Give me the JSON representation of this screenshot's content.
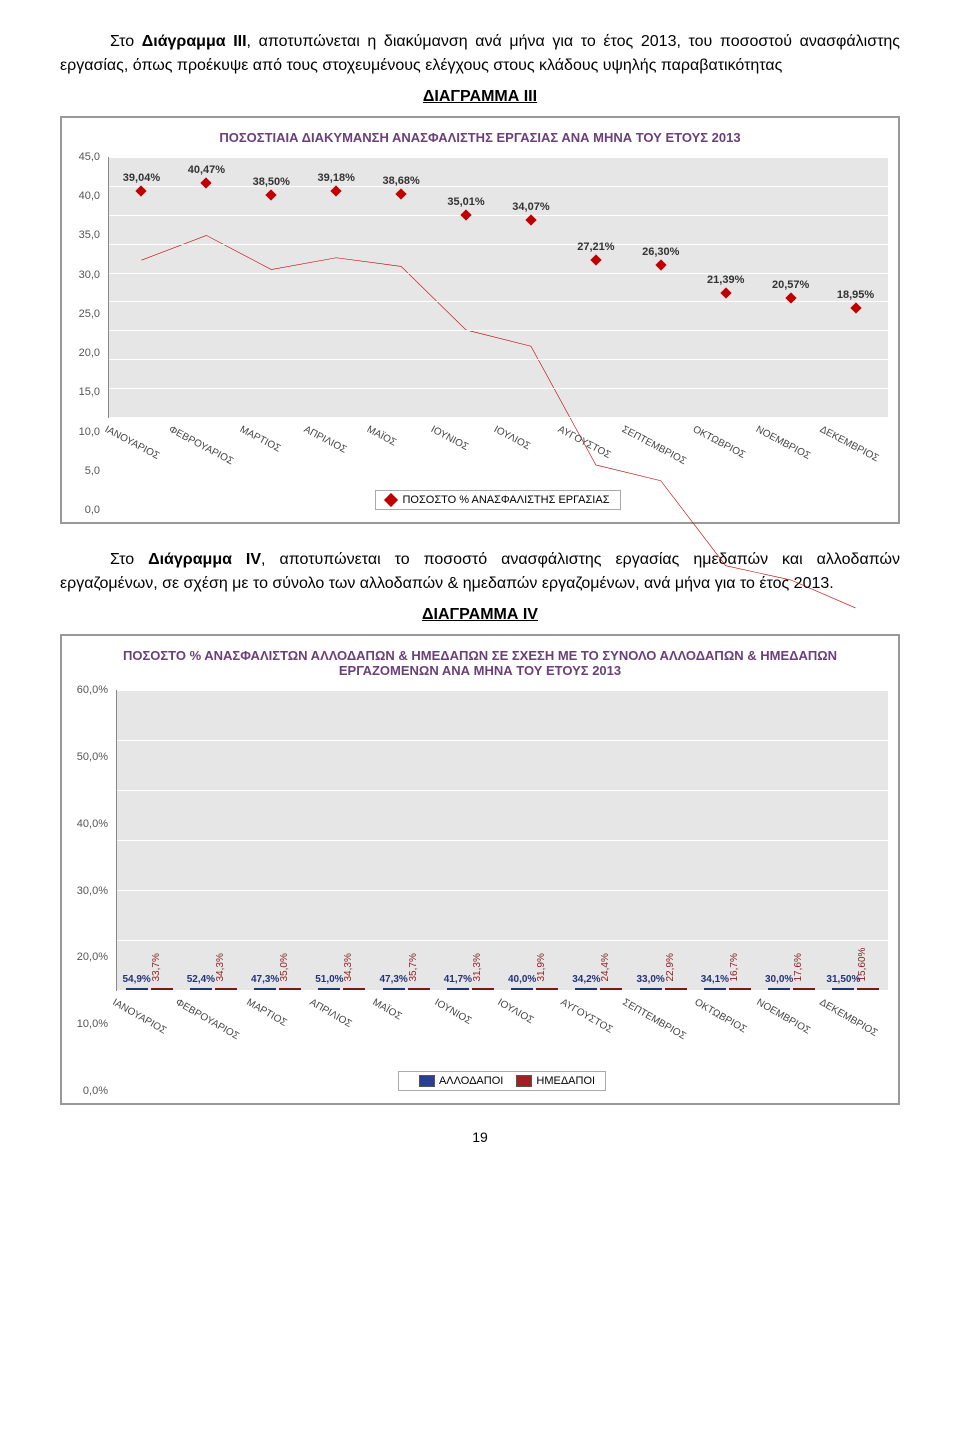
{
  "para1_prefix": "Στο ",
  "para1_bold": "Διάγραμμα ΙII",
  "para1_rest": ", αποτυπώνεται η διακύμανση ανά μήνα για το έτος 2013, του ποσοστού ανασφάλιστης εργασίας, όπως προέκυψε από τους στοχευμένους ελέγχους στους κλάδους υψηλής παραβατικότητας",
  "heading3": "ΔΙΑΓΡΑΜΜΑ III",
  "chart3": {
    "title": "ΠΟΣΟΣΤΙΑΙΑ ΔΙΑΚΥΜΑΝΣΗ ΑΝΑΣΦΑΛΙΣΤΗΣ ΕΡΓΑΣΙΑΣ ΑΝΑ ΜΗΝΑ ΤΟΥ ΕΤΟΥΣ 2013",
    "ymin": 0,
    "ymax": 45,
    "ystep": 5,
    "line_color": "#c00000",
    "bg": "#e6e6e6",
    "grid_color": "#ffffff",
    "months": [
      "ΙΑΝΟΥΑΡΙΟΣ",
      "ΦΕΒΡΟΥΑΡΙΟΣ",
      "ΜΑΡΤΙΟΣ",
      "ΑΠΡΙΛΙΟΣ",
      "ΜΑΪΟΣ",
      "ΙΟΥΝΙΟΣ",
      "ΙΟΥΛΙΟΣ",
      "ΑΥΓΟΥΣΤΟΣ",
      "ΣΕΠΤΕΜΒΡΙΟΣ",
      "ΟΚΤΩΒΡΙΟΣ",
      "ΝΟΕΜΒΡΙΟΣ",
      "ΔΕΚΕΜΒΡΙΟΣ"
    ],
    "values": [
      39.04,
      40.47,
      38.5,
      39.18,
      38.68,
      35.01,
      34.07,
      27.21,
      26.3,
      21.39,
      20.57,
      18.95
    ],
    "value_labels": [
      "39,04%",
      "40,47%",
      "38,50%",
      "39,18%",
      "38,68%",
      "35,01%",
      "34,07%",
      "27,21%",
      "26,30%",
      "21,39%",
      "20,57%",
      "18,95%"
    ],
    "legend": "ΠΟΣΟΣΤΟ % ΑΝΑΣΦΑΛΙΣΤΗΣ ΕΡΓΑΣΙΑΣ"
  },
  "para2_prefix": "Στο ",
  "para2_bold": "Διάγραμμα ΙV",
  "para2_rest": ", αποτυπώνεται το ποσοστό ανασφάλιστης εργασίας ημεδαπών και αλλοδαπών εργαζομένων, σε σχέση με το σύνολο των αλλοδαπών & ημεδαπών εργαζομένων, ανά μήνα για το έτος 2013.",
  "heading4": "ΔΙΑΓΡΑΜΜΑ IV",
  "chart4": {
    "title": "ΠΟΣΟΣΤΟ % ΑΝΑΣΦΑΛΙΣΤΩΝ ΑΛΛΟΔΑΠΩΝ & ΗΜΕΔΑΠΩΝ ΣΕ ΣΧΕΣΗ ΜΕ ΤΟ ΣΥΝΟΛΟ ΑΛΛΟΔΑΠΩΝ & ΗΜΕΔΑΠΩΝ ΕΡΓΑΖΟΜΕΝΩΝ ΑΝΑ ΜΗΝΑ ΤΟΥ ΕΤΟΥΣ 2013",
    "ymin": 0,
    "ymax": 60,
    "ystep": 10,
    "bar1_color": "#2a3f8f",
    "bar2_color": "#a22020",
    "bg": "#e6e6e6",
    "grid_color": "#ffffff",
    "months": [
      "ΙΑΝΟΥΑΡΙΟΣ",
      "ΦΕΒΡΟΥΑΡΙΟΣ",
      "ΜΑΡΤΙΟΣ",
      "ΑΠΡΙΛΙΟΣ",
      "ΜΑΪΟΣ",
      "ΙΟΥΝΙΟΣ",
      "ΙΟΥΛΙΟΣ",
      "ΑΥΓΟΥΣΤΟΣ",
      "ΣΕΠΤΕΜΒΡΙΟΣ",
      "ΟΚΤΩΒΡΙΟΣ",
      "ΝΟΕΜΒΡΙΟΣ",
      "ΔΕΚΕΜΒΡΙΟΣ"
    ],
    "series1": [
      54.9,
      52.4,
      47.3,
      51.0,
      47.3,
      41.7,
      40.0,
      34.2,
      33.0,
      34.1,
      30.0,
      31.5
    ],
    "series1_labels": [
      "54,9%",
      "52,4%",
      "47,3%",
      "51,0%",
      "47,3%",
      "41,7%",
      "40,0%",
      "34,2%",
      "33,0%",
      "34,1%",
      "30,0%",
      "31,50%"
    ],
    "series2": [
      33.7,
      34.3,
      35.0,
      34.3,
      35.7,
      31.3,
      31.9,
      24.4,
      22.9,
      16.7,
      17.6,
      15.6
    ],
    "series2_labels": [
      "33,7%",
      "34,3%",
      "35,0%",
      "34,3%",
      "35,7%",
      "31,3%",
      "31,9%",
      "24,4%",
      "22,9%",
      "16,7%",
      "17,6%",
      "15,60%"
    ],
    "legend1": "ΑΛΛΟΔΑΠΟΙ",
    "legend2": "ΗΜΕΔΑΠΟΙ"
  },
  "page_number": "19"
}
